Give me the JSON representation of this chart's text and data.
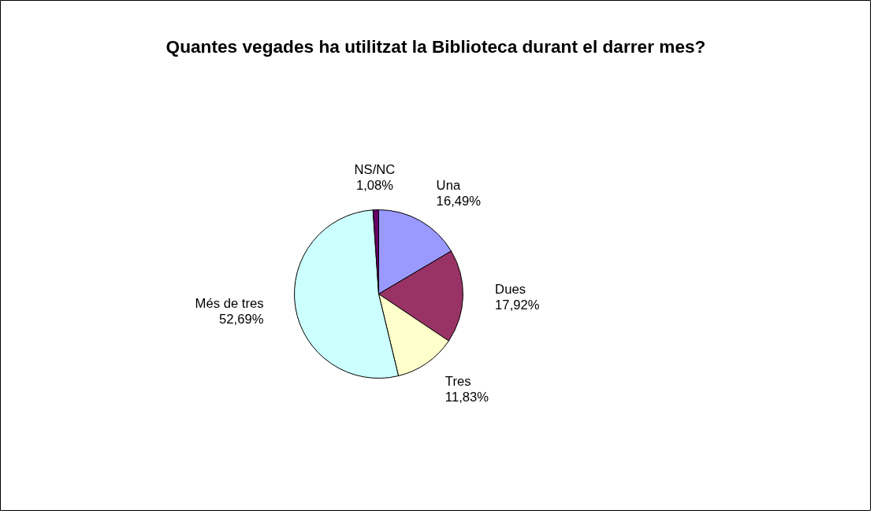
{
  "chart_data": {
    "type": "pie",
    "title": "Quantes vegades ha utilitzat la Biblioteca durant el darrer mes?",
    "categories": [
      "Una",
      "Dues",
      "Tres",
      "Més de tres",
      "NS/NC"
    ],
    "values": [
      16.49,
      17.92,
      11.83,
      52.69,
      1.08
    ],
    "value_labels": [
      "16,49%",
      "17,92%",
      "11,83%",
      "52,69%",
      "1,08%"
    ],
    "colors": [
      "#9999ff",
      "#993366",
      "#ffffcc",
      "#ccffff",
      "#660066"
    ]
  }
}
